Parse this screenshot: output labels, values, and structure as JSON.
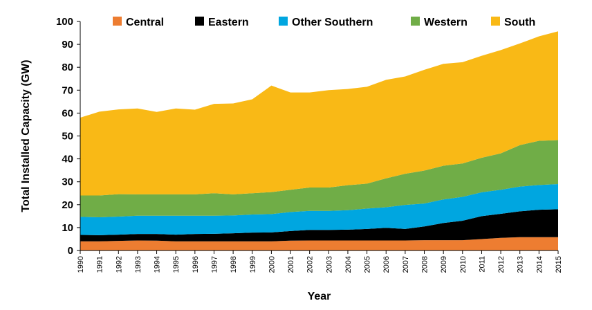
{
  "chart_data": {
    "type": "area",
    "stacked": true,
    "xlabel": "Year",
    "ylabel": "Total Installed Capacity (GW)",
    "ylim": [
      0,
      100
    ],
    "yticks": [
      0,
      10,
      20,
      30,
      40,
      50,
      60,
      70,
      80,
      90,
      100
    ],
    "x": [
      "1990",
      "1991",
      "1992",
      "1993",
      "1994",
      "1995",
      "1996",
      "1997",
      "1998",
      "1999",
      "2000",
      "2001",
      "2002",
      "2003",
      "2004",
      "2005",
      "2006",
      "2007",
      "2008",
      "2009",
      "2010",
      "2011",
      "2012",
      "2013",
      "2014",
      "2015"
    ],
    "legend_position": "top",
    "grid": false,
    "series": [
      {
        "name": "Central",
        "color": "#ed7d31",
        "values": [
          4.0,
          4.0,
          4.2,
          4.4,
          4.3,
          4.0,
          4.0,
          4.0,
          4.0,
          4.0,
          4.0,
          4.3,
          4.4,
          4.4,
          4.4,
          4.4,
          4.4,
          4.4,
          4.5,
          4.5,
          4.5,
          5.0,
          5.5,
          5.8,
          5.8,
          5.8
        ]
      },
      {
        "name": "Eastern",
        "color": "#000000",
        "values": [
          2.8,
          2.7,
          2.7,
          2.8,
          2.9,
          2.9,
          3.2,
          3.3,
          3.5,
          3.8,
          3.9,
          4.2,
          4.6,
          4.6,
          4.7,
          5.0,
          5.5,
          5.0,
          6.0,
          7.5,
          8.5,
          10.0,
          10.5,
          11.3,
          12.0,
          12.2
        ]
      },
      {
        "name": "Other Southern",
        "color": "#00a6e0",
        "values": [
          7.9,
          7.8,
          7.9,
          8.0,
          8.0,
          8.3,
          8.0,
          7.9,
          7.8,
          7.9,
          8.0,
          8.3,
          8.3,
          8.3,
          8.5,
          8.9,
          9.0,
          10.5,
          10.0,
          10.3,
          10.4,
          10.4,
          10.5,
          10.8,
          10.8,
          11.0
        ]
      },
      {
        "name": "Western",
        "color": "#70ad47",
        "values": [
          9.3,
          9.5,
          9.8,
          9.3,
          9.3,
          9.3,
          9.3,
          9.8,
          9.2,
          9.3,
          9.6,
          9.7,
          10.2,
          10.2,
          10.9,
          10.9,
          12.6,
          13.6,
          14.4,
          14.7,
          14.6,
          15.1,
          15.9,
          18.1,
          19.3,
          19.2
        ]
      },
      {
        "name": "South",
        "color": "#f9b916",
        "values": [
          34.0,
          36.6,
          37.0,
          37.5,
          36.0,
          37.5,
          37.0,
          39.0,
          39.7,
          41.0,
          46.5,
          42.5,
          41.5,
          42.5,
          42.0,
          42.3,
          43.0,
          42.5,
          44.0,
          44.5,
          44.2,
          44.5,
          45.1,
          44.4,
          45.6,
          47.5
        ]
      }
    ]
  }
}
